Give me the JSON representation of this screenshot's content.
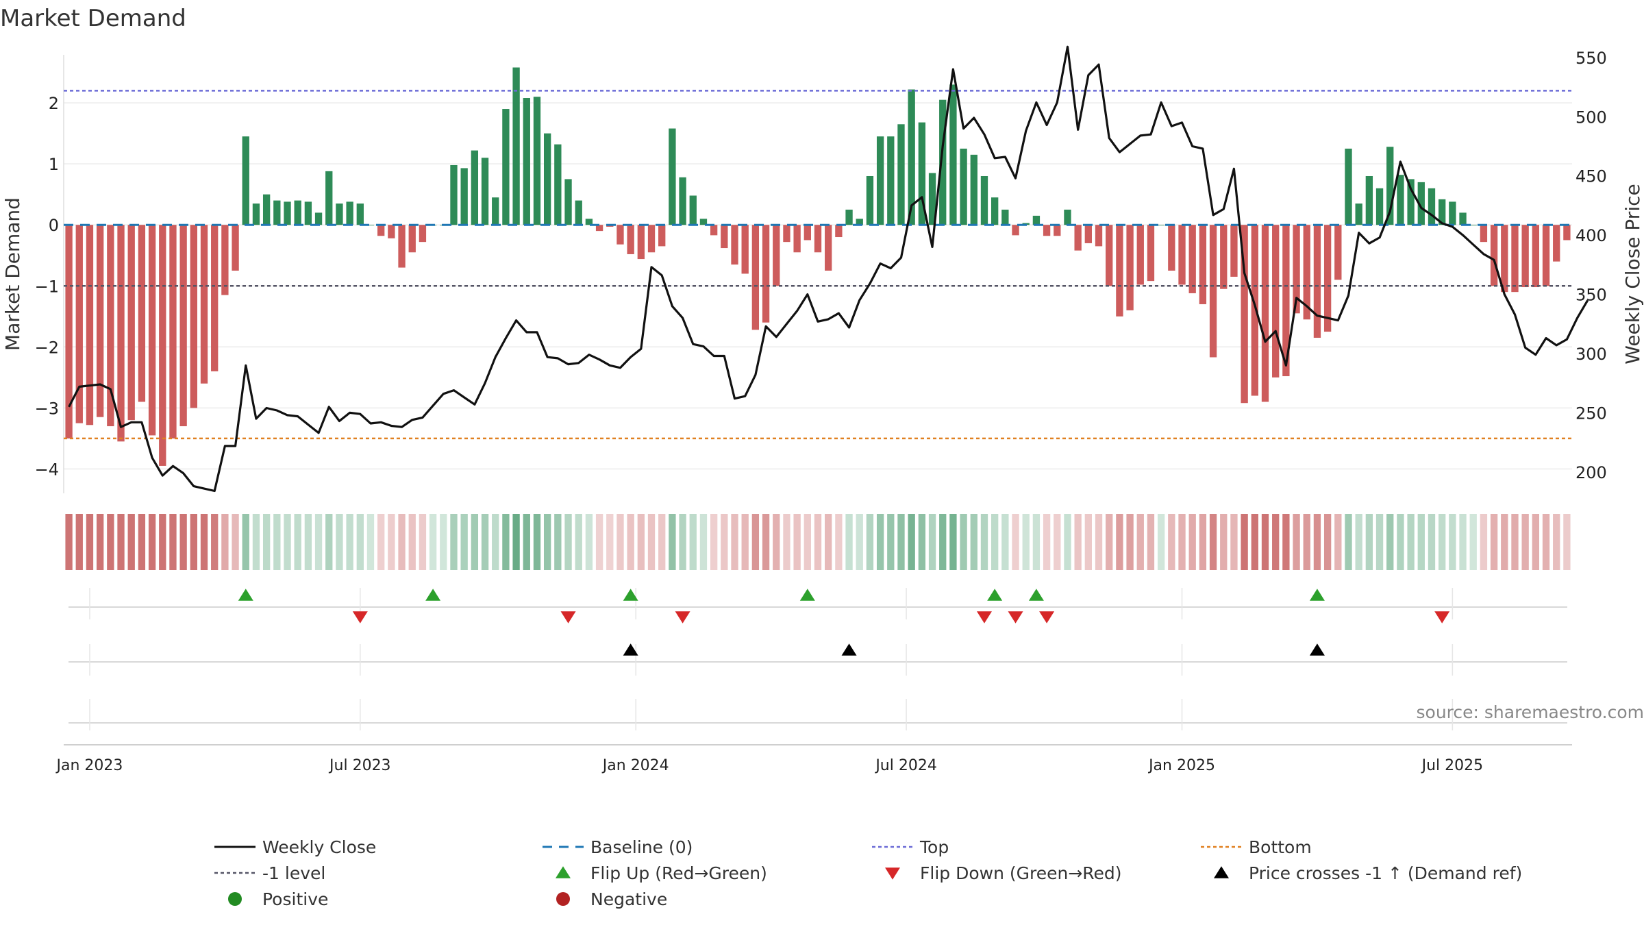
{
  "chart_data": {
    "type": "bar",
    "title": "Market Demand",
    "ylabel": "Market Demand",
    "y2label": "Weekly Close Price",
    "ylim": [
      -4.4,
      2.9
    ],
    "y2lim": [
      182,
      558
    ],
    "yticks": [
      2,
      1,
      0,
      -1,
      -2,
      -3,
      -4
    ],
    "yticklabels": [
      "2",
      "1",
      "0",
      "−1",
      "−2",
      "−3",
      "−4"
    ],
    "y2ticks": [
      550,
      500,
      450,
      400,
      350,
      300,
      250,
      200
    ],
    "y2ticklabels": [
      "550",
      "500",
      "450",
      "400",
      "350",
      "300",
      "250",
      "200"
    ],
    "xticks": [
      {
        "label": "Jan 2023",
        "week": 2
      },
      {
        "label": "Jul 2023",
        "week": 28
      },
      {
        "label": "Jan 2024",
        "week": 54.5
      },
      {
        "label": "Jul 2024",
        "week": 80.5
      },
      {
        "label": "Jan 2025",
        "week": 107
      },
      {
        "label": "Jul 2025",
        "week": 133
      }
    ],
    "levels": {
      "top": 2.2,
      "minus_one": -1.0,
      "bottom": -3.5,
      "baseline": 0
    },
    "demand": [
      -3.5,
      -3.25,
      -3.28,
      -3.15,
      -3.3,
      -3.55,
      -3.2,
      -2.9,
      -3.45,
      -3.95,
      -3.5,
      -3.3,
      -3.0,
      -2.6,
      -2.4,
      -1.15,
      -0.75,
      1.45,
      0.35,
      0.5,
      0.4,
      0.38,
      0.4,
      0.38,
      0.2,
      0.88,
      0.35,
      0.38,
      0.35,
      0.0,
      -0.18,
      -0.22,
      -0.7,
      -0.45,
      -0.28,
      0.0,
      0.0,
      0.98,
      0.93,
      1.22,
      1.1,
      0.45,
      1.9,
      2.58,
      2.08,
      2.1,
      1.5,
      1.32,
      0.75,
      0.4,
      0.1,
      -0.1,
      -0.03,
      -0.32,
      -0.48,
      -0.56,
      -0.45,
      -0.35,
      1.58,
      0.78,
      0.48,
      0.1,
      -0.17,
      -0.38,
      -0.65,
      -0.8,
      -1.72,
      -1.6,
      -1.0,
      -0.28,
      -0.45,
      -0.25,
      -0.45,
      -0.75,
      -0.2,
      0.25,
      0.1,
      0.8,
      1.45,
      1.45,
      1.65,
      2.22,
      1.68,
      0.85,
      2.05,
      2.3,
      1.25,
      1.15,
      0.8,
      0.45,
      0.25,
      -0.17,
      0.03,
      0.15,
      -0.18,
      -0.18,
      0.25,
      -0.42,
      -0.3,
      -0.35,
      -1.0,
      -1.5,
      -1.4,
      -0.98,
      -0.92,
      0.0,
      -0.75,
      -0.98,
      -1.12,
      -1.3,
      -2.17,
      -1.05,
      -0.85,
      -2.92,
      -2.8,
      -2.9,
      -2.5,
      -2.48,
      -1.45,
      -1.55,
      -1.85,
      -1.75,
      -0.9,
      1.25,
      0.35,
      0.8,
      0.6,
      1.28,
      0.82,
      0.75,
      0.7,
      0.6,
      0.42,
      0.38,
      0.2,
      0.0,
      -0.28,
      -1.0,
      -1.1,
      -1.1,
      -1.02,
      -1.02,
      -1.0,
      -0.6,
      -0.25
    ],
    "close": [
      255,
      272,
      273,
      274,
      270,
      238,
      242,
      242,
      212,
      197,
      205,
      199,
      188,
      186,
      184,
      222,
      222,
      290,
      245,
      254,
      252,
      248,
      247,
      240,
      233,
      255,
      243,
      250,
      249,
      241,
      242,
      239,
      238,
      244,
      246,
      256,
      266,
      269,
      263,
      257,
      275,
      297,
      313,
      328,
      318,
      318,
      297,
      296,
      291,
      292,
      299,
      295,
      290,
      288,
      297,
      304,
      373,
      366,
      340,
      330,
      308,
      306,
      298,
      298,
      262,
      264,
      282,
      323,
      314,
      325,
      336,
      350,
      327,
      329,
      334,
      322,
      345,
      359,
      376,
      372,
      381,
      425,
      432,
      390,
      475,
      540,
      490,
      499,
      485,
      465,
      466,
      448,
      488,
      512,
      493,
      512,
      559,
      489,
      535,
      544,
      482,
      470,
      477,
      484,
      485,
      512,
      492,
      495,
      475,
      473,
      417,
      422,
      456,
      368,
      341,
      310,
      319,
      290,
      347,
      340,
      332,
      330,
      328,
      349,
      402,
      393,
      398,
      420,
      462,
      439,
      423,
      417,
      410,
      407,
      400,
      392,
      384,
      379,
      350,
      333,
      305,
      299,
      313,
      307,
      312,
      330,
      345
    ],
    "flip_up_weeks": [
      17,
      35,
      54,
      71,
      89,
      93,
      120
    ],
    "flip_down_weeks": [
      28,
      48,
      59,
      88,
      91,
      94,
      132
    ],
    "cross_weeks": [
      54,
      75,
      120
    ],
    "source_label": "source: sharemaestro.com",
    "legend": [
      {
        "label": "Weekly Close",
        "key": "line-black"
      },
      {
        "label": "Baseline (0)",
        "key": "dash-blue"
      },
      {
        "label": "Top",
        "key": "dot-purple"
      },
      {
        "label": "Bottom",
        "key": "dot-orange"
      },
      {
        "label": "-1 level",
        "key": "dot-gray"
      },
      {
        "label": "Flip Up (Red→Green)",
        "key": "tri-up-green"
      },
      {
        "label": "Flip Down (Green→Red)",
        "key": "tri-down-red"
      },
      {
        "label": "Price crosses -1 ↑ (Demand ref)",
        "key": "tri-up-black"
      },
      {
        "label": "Positive",
        "key": "dot-green"
      },
      {
        "label": "Negative",
        "key": "dot-red"
      }
    ],
    "colors": {
      "positive": "#2e8b57",
      "negative": "#cd5c5c",
      "close": "#111111",
      "baseline": "#1f77b4",
      "top": "#6b6bd6",
      "bottom": "#e08020",
      "minus_one": "#555566",
      "flip_up": "#2ca02c",
      "flip_down": "#d62728",
      "cross": "#000000",
      "positive_dot": "#228b22",
      "negative_dot": "#b22222"
    }
  }
}
